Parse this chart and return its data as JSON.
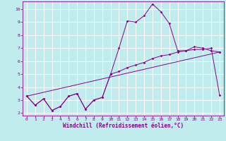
{
  "xlabel": "Windchill (Refroidissement éolien,°C)",
  "bg_color": "#c0ecee",
  "line_color": "#880088",
  "grid_color": "#aadddd",
  "xlim": [
    -0.5,
    23.5
  ],
  "ylim": [
    1.8,
    10.6
  ],
  "xticks": [
    0,
    1,
    2,
    3,
    4,
    5,
    6,
    7,
    8,
    9,
    10,
    11,
    12,
    13,
    14,
    15,
    16,
    17,
    18,
    19,
    20,
    21,
    22,
    23
  ],
  "yticks": [
    2,
    3,
    4,
    5,
    6,
    7,
    8,
    9,
    10
  ],
  "line1_x": [
    0,
    1,
    2,
    3,
    4,
    5,
    6,
    7,
    8,
    9,
    10,
    11,
    12,
    13,
    14,
    15,
    16,
    17,
    18,
    19,
    20,
    21,
    22,
    23
  ],
  "line1_y": [
    3.3,
    2.6,
    3.1,
    2.2,
    2.5,
    3.3,
    3.5,
    2.3,
    3.0,
    3.2,
    5.0,
    7.0,
    9.1,
    9.0,
    9.5,
    10.4,
    9.8,
    8.9,
    6.8,
    6.8,
    7.1,
    7.0,
    6.8,
    6.7
  ],
  "line2_x": [
    0,
    1,
    2,
    3,
    4,
    5,
    6,
    7,
    8,
    9,
    10,
    11,
    12,
    13,
    14,
    15,
    16,
    17,
    18,
    19,
    20,
    21,
    22,
    23
  ],
  "line2_y": [
    3.3,
    2.6,
    3.1,
    2.2,
    2.5,
    3.3,
    3.5,
    2.3,
    3.0,
    3.2,
    5.0,
    5.2,
    5.5,
    5.7,
    5.9,
    6.2,
    6.4,
    6.5,
    6.7,
    6.8,
    6.9,
    6.9,
    7.0,
    3.4
  ],
  "line3_x": [
    0,
    23
  ],
  "line3_y": [
    3.3,
    6.7
  ],
  "markersize": 1.8
}
